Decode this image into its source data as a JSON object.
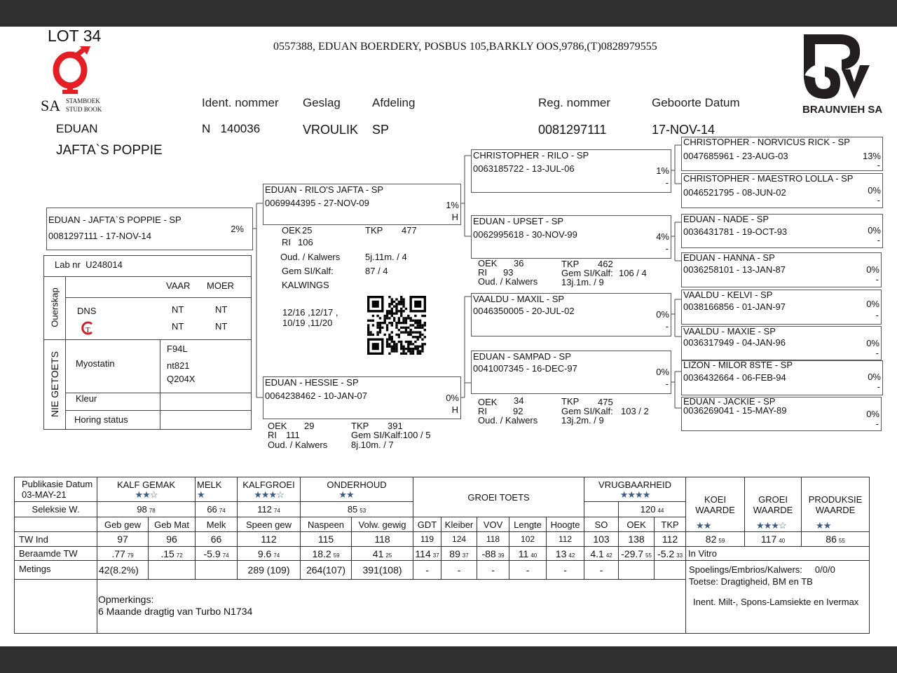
{
  "lot": "LOT 34",
  "address": "0557388,  EDUAN BOERDERY, POSBUS 105,BARKLY OOS,9786,(T)0828979555",
  "logos": {
    "left_text_1": "SA",
    "left_text_2": "STAMBOEK",
    "left_text_3": "STUD BOOK",
    "right_text": "BRAUNVIEH SA",
    "gt": "GT",
    "accent": "#e31e24"
  },
  "header": {
    "labels": {
      "ident": "Ident. nommer",
      "geslag": "Geslag",
      "afdeling": "Afdeling",
      "reg": "Reg. nommer",
      "geboorte": "Geboorte Datum"
    },
    "breeder": "EDUAN",
    "animal_name": "JAFTA`S POPPIE",
    "ident": "N   140036",
    "geslag": "VROULIK",
    "afdeling": "SP",
    "reg": "0081297111",
    "geboorte": "17-NOV-14"
  },
  "pedigree": {
    "subject": {
      "name": "EDUAN  - JAFTA`S POPPIE - SP",
      "reg": "0081297111 -  17-NOV-14",
      "pct": "2%"
    },
    "sire": {
      "name": "EDUAN  - RILO'S JAFTA - SP",
      "reg": "0069944395 - 27-NOV-09",
      "pct": "1%",
      "mark": "H",
      "stats": {
        "oek_label": "OEK",
        "oek": "25",
        "tkp_label": "TKP",
        "tkp": "477",
        "ri_label": "RI",
        "ri": "106",
        "oud_label": "Oud. / Kalwers",
        "oud": "5j.11m. / 4",
        "gem_label": "Gem SI/Kalf:",
        "gem": "87 / 4",
        "kalwings_label": "KALWINGS",
        "kalwings_1": "12/16 ,12/17 ,",
        "kalwings_2": "10/19 ,11/20"
      }
    },
    "dam": {
      "name": "EDUAN  - HESSIE - SP",
      "reg": "0064238462 - 10-JAN-07",
      "pct": "0%",
      "mark": "H",
      "stats": {
        "oek_label": "OEK",
        "oek": "29",
        "tkp_label": "TKP",
        "tkp": "391",
        "ri_label": "RI",
        "ri": "111",
        "oud_label": "Oud. / Kalwers",
        "gem": "Gem SI/Kalf:100 / 5",
        "oud": "8j.10m. / 7"
      }
    },
    "ss": {
      "name": "CHRISTOPHER  - RILO - SP",
      "reg": "0063185722 - 13-JUL-06",
      "pct": "1%",
      "mark": "-"
    },
    "sd": {
      "name": "EDUAN  - UPSET - SP",
      "reg": "0062995618 - 30-NOV-99",
      "pct": "4%",
      "mark": "-",
      "stats": {
        "oek_label": "OEK",
        "oek": "36",
        "tkp_label": "TKP",
        "tkp": "462",
        "ri_label": "RI",
        "ri": "93",
        "oud_label": "Oud. / Kalwers",
        "gem_label": "Gem SI/Kalf:",
        "gem": "106 / 4",
        "oud": "13j.1m. / 9"
      }
    },
    "ds": {
      "name": "VAALDU  - MAXIL - SP",
      "reg": "0046350005 - 20-JUL-02",
      "pct": "0%",
      "mark": "-"
    },
    "dd": {
      "name": "EDUAN  - SAMPAD - SP",
      "reg": "0041007345 - 16-DEC-97",
      "pct": "0%",
      "mark": "-",
      "stats": {
        "oek_label": "OEK",
        "oek": "34",
        "tkp_label": "TKP",
        "tkp": "475",
        "ri_label": "RI",
        "ri": "92",
        "oud_label": "Oud. / Kalwers",
        "gem_label": "Gem SI/Kalf:",
        "gem": "103 / 2",
        "oud": "13j.2m. / 9"
      }
    },
    "ggp": [
      {
        "name": "CHRISTOPHER  - NORVICUS RICK - SP",
        "reg": "0047685961 - 23-AUG-03",
        "pct": "13%",
        "mark": "-"
      },
      {
        "name": "CHRISTOPHER  - MAESTRO LOLLA - SP",
        "reg": "0046521795 - 08-JUN-02",
        "pct": "0%",
        "mark": "-"
      },
      {
        "name": "EDUAN  - NADE - SP",
        "reg": "0036431781 - 19-OCT-93",
        "pct": "0%",
        "mark": "-"
      },
      {
        "name": "EDUAN  - HANNA - SP",
        "reg": "0036258101 - 13-JAN-87",
        "pct": "0%",
        "mark": "-"
      },
      {
        "name": "VAALDU  - KELVI - SP",
        "reg": "0038166856 - 01-JAN-97",
        "pct": "0%",
        "mark": "-"
      },
      {
        "name": "VAALDU  - MAXIE - SP",
        "reg": "0036317949 - 04-JAN-96",
        "pct": "0%",
        "mark": "-"
      },
      {
        "name": "LIZON  - MILOR 8STE - SP",
        "reg": "0036432664 - 06-FEB-94",
        "pct": "0%",
        "mark": "-"
      },
      {
        "name": "EDUAN  - JACKIE - SP",
        "reg": "0036269041 - 15-MAY-89",
        "pct": "0%",
        "mark": "-"
      }
    ]
  },
  "lab": {
    "lab_nr": "Lab nr  U248014",
    "ouerskap": "Ouerskap",
    "nie_getoets": "NIE GETOETS",
    "vaar": "VAAR",
    "moer": "MOER",
    "dns": "DNS",
    "dns_vaar": "NT",
    "dns_moer": "NT",
    "gt_vaar": "NT",
    "gt_moer": "NT",
    "myostatin": "Myostatin",
    "myo_1": "F94L",
    "myo_2": "nt821",
    "myo_3": "Q204X",
    "kleur": "Kleur",
    "horing": "Horing status"
  },
  "table": {
    "pub_label": "Publikasie Datum",
    "pub_date": "03-MAY-21",
    "seleksie_label": "Seleksie W.",
    "groups": [
      {
        "label": "KALF GEMAK",
        "stars": "★★☆",
        "value": "98",
        "acc": "78"
      },
      {
        "label": "MELK",
        "stars": "★",
        "value": "66",
        "acc": "74"
      },
      {
        "label": "KALFGROEI",
        "stars": "★★★☆",
        "value": "112",
        "acc": "74"
      },
      {
        "label": "ONDERHOUD",
        "stars": "★★",
        "value": "85",
        "acc": "53"
      },
      {
        "label": "GROEI TOETS"
      },
      {
        "label": "VRUGBAARHEID",
        "stars": "★★★★",
        "value": "120",
        "acc": "44"
      }
    ],
    "waarde": [
      {
        "label": "KOEI WAARDE",
        "stars": "★★",
        "value": "82",
        "acc": "59"
      },
      {
        "label": "GROEI WAARDE",
        "stars": "★★★☆",
        "value": "117",
        "acc": "40"
      },
      {
        "label": "PRODUKSIE WAARDE",
        "stars": "★★",
        "value": "86",
        "acc": "55"
      }
    ],
    "columns": [
      "Geb gew",
      "Geb Mat",
      "Melk",
      "Speen gew",
      "Naspeen",
      "Volw. gewig",
      "GDT",
      "Kleiber",
      "VOV",
      "Lengte",
      "Hoogte",
      "SO",
      "OEK",
      "TKP"
    ],
    "tw_label": "TW Ind",
    "tw": [
      "97",
      "96",
      "66",
      "112",
      "115",
      "118",
      "119",
      "124",
      "118",
      "102",
      "112",
      "103",
      "138",
      "112"
    ],
    "beraamde_label": "Beraamde TW",
    "beraamde": [
      {
        "v": ".77",
        "a": "79"
      },
      {
        "v": ".15",
        "a": "72"
      },
      {
        "v": "-5.9",
        "a": "74"
      },
      {
        "v": "9.6",
        "a": "74"
      },
      {
        "v": "18.2",
        "a": "59"
      },
      {
        "v": "41",
        "a": "25"
      },
      {
        "v": "114",
        "a": "37"
      },
      {
        "v": "89",
        "a": "37"
      },
      {
        "v": "-88",
        "a": "39"
      },
      {
        "v": "11",
        "a": "40"
      },
      {
        "v": "13",
        "a": "42"
      },
      {
        "v": "4.1",
        "a": "42"
      },
      {
        "v": "-29.7",
        "a": "55"
      },
      {
        "v": "-5.2",
        "a": "33"
      }
    ],
    "metings_label": "Metings",
    "metings": [
      "42(8.2%)",
      "",
      "",
      "289 (109)",
      "264(107)",
      "391(108)",
      "-",
      "-",
      "-",
      "-",
      "-",
      "-",
      "",
      ""
    ],
    "in_vitro": "In Vitro",
    "spoelings_label": "Spoelings/Embrios/Kalwers:",
    "spoelings": "0/0/0",
    "toetse": "Toetse: Dragtigheid, BM en TB",
    "inent": "Inent. Milt-, Spons-Lamsiekte en Ivermax",
    "opmerkings_label": "Opmerkings:",
    "opmerkings": "6 Maande dragtig van Turbo N1734"
  },
  "colors": {
    "star": "#3d5b84",
    "bars": "#2f2f2f"
  }
}
